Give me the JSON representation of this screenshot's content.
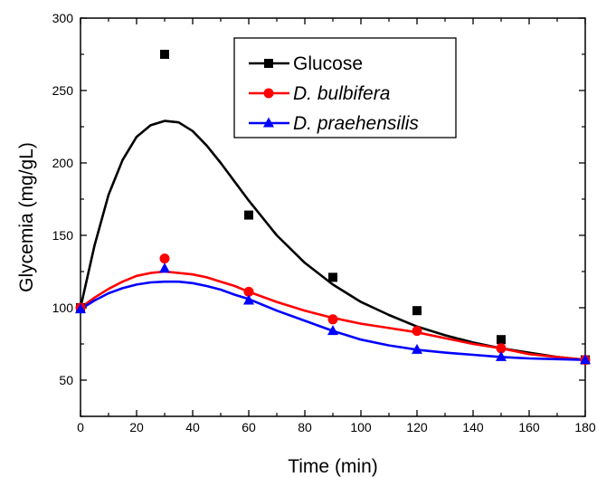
{
  "chart_data": {
    "type": "scatter",
    "xlabel": "Time (min)",
    "ylabel": "Glycemia (mg/gL)",
    "xlim": [
      0,
      180
    ],
    "ylim": [
      25,
      300
    ],
    "xticks": [
      "0",
      "20",
      "40",
      "60",
      "80",
      "100",
      "120",
      "140",
      "160",
      "180"
    ],
    "yticks": [
      "50",
      "100",
      "150",
      "200",
      "250",
      "300"
    ],
    "legend_position": "top-center",
    "grid": false,
    "series": [
      {
        "name": "Glucose",
        "italic": false,
        "color": "#000000",
        "marker": "square",
        "points": [
          [
            0,
            100
          ],
          [
            30,
            275
          ],
          [
            60,
            164
          ],
          [
            90,
            121
          ],
          [
            120,
            98
          ],
          [
            150,
            78
          ],
          [
            180,
            64
          ]
        ],
        "fit": [
          [
            0,
            100
          ],
          [
            5,
            143
          ],
          [
            10,
            178
          ],
          [
            15,
            202
          ],
          [
            20,
            218
          ],
          [
            25,
            226
          ],
          [
            30,
            229
          ],
          [
            35,
            228
          ],
          [
            40,
            222
          ],
          [
            45,
            212
          ],
          [
            50,
            200
          ],
          [
            55,
            187
          ],
          [
            60,
            174
          ],
          [
            70,
            150
          ],
          [
            80,
            131
          ],
          [
            90,
            116
          ],
          [
            100,
            104
          ],
          [
            110,
            95
          ],
          [
            120,
            87
          ],
          [
            130,
            81
          ],
          [
            140,
            76
          ],
          [
            150,
            72
          ],
          [
            160,
            69
          ],
          [
            170,
            66
          ],
          [
            180,
            64
          ]
        ]
      },
      {
        "name": "D. bulbifera",
        "italic": true,
        "color": "#ff0000",
        "marker": "circle",
        "points": [
          [
            0,
            100
          ],
          [
            30,
            134
          ],
          [
            60,
            111
          ],
          [
            90,
            92
          ],
          [
            120,
            84
          ],
          [
            150,
            72
          ],
          [
            180,
            64
          ]
        ],
        "fit": [
          [
            0,
            100
          ],
          [
            5,
            107
          ],
          [
            10,
            113
          ],
          [
            15,
            118
          ],
          [
            20,
            122
          ],
          [
            25,
            124
          ],
          [
            30,
            125
          ],
          [
            35,
            124
          ],
          [
            40,
            123
          ],
          [
            45,
            121
          ],
          [
            50,
            118
          ],
          [
            55,
            115
          ],
          [
            60,
            111
          ],
          [
            70,
            104
          ],
          [
            80,
            98
          ],
          [
            90,
            93
          ],
          [
            100,
            89
          ],
          [
            110,
            86
          ],
          [
            120,
            83
          ],
          [
            130,
            79
          ],
          [
            140,
            75
          ],
          [
            150,
            72
          ],
          [
            160,
            68
          ],
          [
            170,
            66
          ],
          [
            180,
            64
          ]
        ]
      },
      {
        "name": "D. praehensilis",
        "italic": true,
        "color": "#0000ff",
        "marker": "triangle",
        "points": [
          [
            0,
            99
          ],
          [
            30,
            127
          ],
          [
            60,
            105
          ],
          [
            90,
            84
          ],
          [
            120,
            71
          ],
          [
            150,
            66
          ],
          [
            180,
            64
          ]
        ],
        "fit": [
          [
            0,
            99
          ],
          [
            5,
            105
          ],
          [
            10,
            110
          ],
          [
            15,
            113.5
          ],
          [
            20,
            116
          ],
          [
            25,
            117.5
          ],
          [
            30,
            118
          ],
          [
            35,
            118
          ],
          [
            40,
            117
          ],
          [
            45,
            115
          ],
          [
            50,
            112.5
          ],
          [
            55,
            109
          ],
          [
            60,
            106
          ],
          [
            70,
            98
          ],
          [
            80,
            91
          ],
          [
            90,
            84
          ],
          [
            100,
            78
          ],
          [
            110,
            74
          ],
          [
            120,
            71
          ],
          [
            130,
            69
          ],
          [
            140,
            67.5
          ],
          [
            150,
            66
          ],
          [
            160,
            65
          ],
          [
            170,
            64.5
          ],
          [
            180,
            64
          ]
        ]
      }
    ]
  }
}
